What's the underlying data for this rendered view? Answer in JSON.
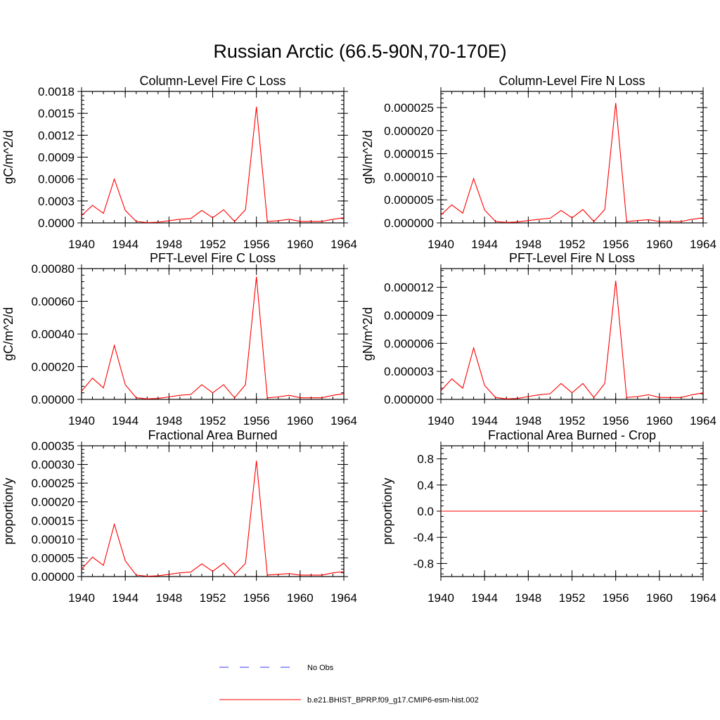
{
  "title": "Russian Arctic (66.5-90N,70-170E)",
  "colors": {
    "series": "#ff0000",
    "obs": "#3a3aff",
    "axis": "#000000"
  },
  "legend": [
    {
      "label": "No Obs",
      "style": "dashed",
      "color": "#3a3aff"
    },
    {
      "label": "b.e21.BHIST_BPRP.f09_g17.CMIP6-esm-hist.002",
      "style": "solid",
      "color": "#ff0000"
    }
  ],
  "chart_data": [
    {
      "type": "line",
      "title": "Column-Level Fire C Loss",
      "ylabel": "gC/m^2/d",
      "xlim": [
        1940,
        1964
      ],
      "ylim": [
        0,
        0.0018
      ],
      "xticks": [
        "1940",
        "1944",
        "1948",
        "1952",
        "1956",
        "1960",
        "1964"
      ],
      "yticks": [
        "0.0000",
        "0.0003",
        "0.0006",
        "0.0009",
        "0.0012",
        "0.0015",
        "0.0018"
      ],
      "x": [
        1940,
        1941,
        1942,
        1943,
        1944,
        1945,
        1946,
        1947,
        1948,
        1949,
        1950,
        1951,
        1952,
        1953,
        1954,
        1955,
        1956,
        1957,
        1958,
        1959,
        1960,
        1961,
        1962,
        1963,
        1964
      ],
      "series": [
        {
          "name": "b.e21.BHIST_BPRP.f09_g17.CMIP6-esm-hist.002",
          "values": [
            0.0001,
            0.00024,
            0.00013,
            0.0006,
            0.00017,
            2e-05,
            5e-06,
            1e-05,
            3e-05,
            5e-05,
            6e-05,
            0.00017,
            7e-05,
            0.00018,
            2e-05,
            0.00018,
            0.00159,
            2e-05,
            3e-05,
            5e-05,
            2e-05,
            2e-05,
            2e-05,
            5e-05,
            7e-05
          ]
        }
      ]
    },
    {
      "type": "line",
      "title": "Column-Level Fire N Loss",
      "ylabel": "gN/m^2/d",
      "xlim": [
        1940,
        1964
      ],
      "ylim": [
        0,
        2.85e-05
      ],
      "xticks": [
        "1940",
        "1944",
        "1948",
        "1952",
        "1956",
        "1960",
        "1964"
      ],
      "yticks": [
        "0.000000",
        "0.000005",
        "0.000010",
        "0.000015",
        "0.000020",
        "0.000025"
      ],
      "x": [
        1940,
        1941,
        1942,
        1943,
        1944,
        1945,
        1946,
        1947,
        1948,
        1949,
        1950,
        1951,
        1952,
        1953,
        1954,
        1955,
        1956,
        1957,
        1958,
        1959,
        1960,
        1961,
        1962,
        1963,
        1964
      ],
      "series": [
        {
          "name": "b.e21.BHIST_BPRP.f09_g17.CMIP6-esm-hist.002",
          "values": [
            1.7e-06,
            3.9e-06,
            2.1e-06,
            9.6e-06,
            2.8e-06,
            3e-07,
            1e-07,
            2e-07,
            5e-07,
            8e-07,
            1e-06,
            2.7e-06,
            1.1e-06,
            2.9e-06,
            3e-07,
            2.9e-06,
            2.6e-05,
            3e-07,
            5e-07,
            7e-07,
            3e-07,
            3e-07,
            3e-07,
            8e-07,
            1.1e-06
          ]
        }
      ]
    },
    {
      "type": "line",
      "title": "PFT-Level Fire C Loss",
      "ylabel": "gC/m^2/d",
      "xlim": [
        1940,
        1964
      ],
      "ylim": [
        0,
        0.0008
      ],
      "xticks": [
        "1940",
        "1944",
        "1948",
        "1952",
        "1956",
        "1960",
        "1964"
      ],
      "yticks": [
        "0.00000",
        "0.00020",
        "0.00040",
        "0.00060",
        "0.00080"
      ],
      "x": [
        1940,
        1941,
        1942,
        1943,
        1944,
        1945,
        1946,
        1947,
        1948,
        1949,
        1950,
        1951,
        1952,
        1953,
        1954,
        1955,
        1956,
        1957,
        1958,
        1959,
        1960,
        1961,
        1962,
        1963,
        1964
      ],
      "series": [
        {
          "name": "b.e21.BHIST_BPRP.f09_g17.CMIP6-esm-hist.002",
          "values": [
            5e-05,
            0.00013,
            7e-05,
            0.00033,
            9e-05,
            1e-05,
            3e-06,
            6e-06,
            1.5e-05,
            2.5e-05,
            3e-05,
            9e-05,
            4e-05,
            9e-05,
            1e-05,
            9e-05,
            0.00075,
            1e-05,
            1.5e-05,
            2.5e-05,
            1e-05,
            1e-05,
            1e-05,
            2.5e-05,
            3.5e-05
          ]
        }
      ]
    },
    {
      "type": "line",
      "title": "PFT-Level Fire N Loss",
      "ylabel": "gN/m^2/d",
      "xlim": [
        1940,
        1964
      ],
      "ylim": [
        0,
        1.4e-05
      ],
      "xticks": [
        "1940",
        "1944",
        "1948",
        "1952",
        "1956",
        "1960",
        "1964"
      ],
      "yticks": [
        "0.000000",
        "0.000003",
        "0.000006",
        "0.000009",
        "0.000012"
      ],
      "x": [
        1940,
        1941,
        1942,
        1943,
        1944,
        1945,
        1946,
        1947,
        1948,
        1949,
        1950,
        1951,
        1952,
        1953,
        1954,
        1955,
        1956,
        1957,
        1958,
        1959,
        1960,
        1961,
        1962,
        1963,
        1964
      ],
      "series": [
        {
          "name": "b.e21.BHIST_BPRP.f09_g17.CMIP6-esm-hist.002",
          "values": [
            9e-07,
            2.2e-06,
            1.2e-06,
            5.5e-06,
            1.5e-06,
            2e-07,
            5e-08,
            1e-07,
            3e-07,
            5e-07,
            6e-07,
            1.7e-06,
            7e-07,
            1.7e-06,
            2e-07,
            1.7e-06,
            1.27e-05,
            2e-07,
            3e-07,
            5e-07,
            2e-07,
            2e-07,
            2e-07,
            5e-07,
            7e-07
          ]
        }
      ]
    },
    {
      "type": "line",
      "title": "Fractional Area Burned",
      "ylabel": "proportion/y",
      "xlim": [
        1940,
        1964
      ],
      "ylim": [
        0,
        0.00035
      ],
      "xticks": [
        "1940",
        "1944",
        "1948",
        "1952",
        "1956",
        "1960",
        "1964"
      ],
      "yticks": [
        "0.00000",
        "0.00005",
        "0.00010",
        "0.00015",
        "0.00020",
        "0.00025",
        "0.00030",
        "0.00035"
      ],
      "x": [
        1940,
        1941,
        1942,
        1943,
        1944,
        1945,
        1946,
        1947,
        1948,
        1949,
        1950,
        1951,
        1952,
        1953,
        1954,
        1955,
        1956,
        1957,
        1958,
        1959,
        1960,
        1961,
        1962,
        1963,
        1964
      ],
      "series": [
        {
          "name": "b.e21.BHIST_BPRP.f09_g17.CMIP6-esm-hist.002",
          "values": [
            2e-05,
            5.2e-05,
            3e-05,
            0.00014,
            4.2e-05,
            4e-06,
            1e-06,
            2e-06,
            6e-06,
            1e-05,
            1.2e-05,
            3.4e-05,
            1.4e-05,
            3.6e-05,
            5e-06,
            3.5e-05,
            0.00031,
            4e-06,
            6e-06,
            8e-06,
            4e-06,
            4e-06,
            4e-06,
            1e-05,
            1.3e-05
          ]
        }
      ]
    },
    {
      "type": "line",
      "title": "Fractional Area Burned - Crop",
      "ylabel": "proportion/y",
      "xlim": [
        1940,
        1964
      ],
      "ylim": [
        -1.0,
        1.0
      ],
      "xticks": [
        "1940",
        "1944",
        "1948",
        "1952",
        "1956",
        "1960",
        "1964"
      ],
      "yticks": [
        "-0.8",
        "-0.4",
        "0.0",
        "0.4",
        "0.8"
      ],
      "x": [
        1940,
        1964
      ],
      "series": [
        {
          "name": "b.e21.BHIST_BPRP.f09_g17.CMIP6-esm-hist.002",
          "values": [
            0,
            0
          ]
        }
      ]
    }
  ]
}
